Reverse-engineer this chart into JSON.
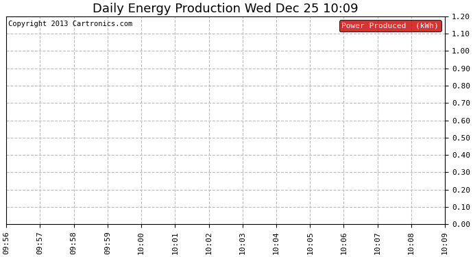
{
  "title": "Daily Energy Production Wed Dec 25 10:09",
  "copyright_text": "Copyright 2013 Cartronics.com",
  "legend_label": "Power Produced  (kWh)",
  "legend_bg_color": "#cc0000",
  "legend_text_color": "#ffffff",
  "x_labels": [
    "09:56",
    "09:57",
    "09:58",
    "09:59",
    "10:00",
    "10:01",
    "10:02",
    "10:03",
    "10:04",
    "10:05",
    "10:06",
    "10:07",
    "10:08",
    "10:09"
  ],
  "y_min": 0.0,
  "y_max": 1.2,
  "y_ticks": [
    0.0,
    0.1,
    0.2,
    0.3,
    0.4,
    0.5,
    0.6,
    0.7,
    0.8,
    0.9,
    1.0,
    1.1,
    1.2
  ],
  "background_color": "#ffffff",
  "plot_bg_color": "#ffffff",
  "grid_color": "#bbbbbb",
  "grid_linestyle": "--",
  "title_fontsize": 13,
  "tick_fontsize": 8,
  "copyright_fontsize": 7.5
}
